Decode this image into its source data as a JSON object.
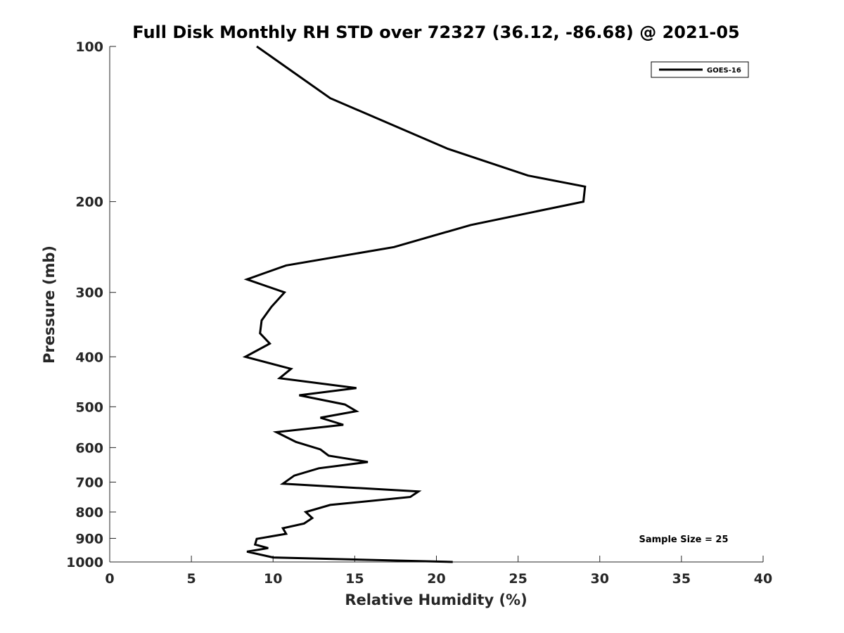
{
  "chart_data": {
    "type": "line",
    "title": "Full Disk Monthly RH STD over 72327 (36.12, -86.68) @ 2021-05",
    "xlabel": "Relative Humidity (%)",
    "ylabel": "Pressure (mb)",
    "xlim": [
      0,
      40
    ],
    "ylim": [
      100,
      1000
    ],
    "yscale": "log",
    "y_reversed": true,
    "xticks": [
      0,
      5,
      10,
      15,
      20,
      25,
      30,
      35,
      40
    ],
    "yticks": [
      100,
      200,
      300,
      400,
      500,
      600,
      700,
      800,
      900,
      1000
    ],
    "grid": false,
    "legend_position": "top-right",
    "annotation": "Sample Size = 25",
    "series": [
      {
        "name": "GOES-16",
        "color": "#000000",
        "points": [
          [
            9.0,
            100
          ],
          [
            13.5,
            126
          ],
          [
            20.7,
            158
          ],
          [
            25.6,
            178
          ],
          [
            29.1,
            187
          ],
          [
            29.0,
            200
          ],
          [
            22.1,
            222
          ],
          [
            17.4,
            245
          ],
          [
            10.8,
            266
          ],
          [
            8.4,
            283
          ],
          [
            10.7,
            300
          ],
          [
            9.9,
            320
          ],
          [
            9.3,
            340
          ],
          [
            9.2,
            360
          ],
          [
            9.8,
            377
          ],
          [
            8.3,
            400
          ],
          [
            11.1,
            422
          ],
          [
            10.4,
            440
          ],
          [
            15.1,
            460
          ],
          [
            11.6,
            475
          ],
          [
            14.4,
            495
          ],
          [
            15.1,
            510
          ],
          [
            12.9,
            525
          ],
          [
            14.3,
            542
          ],
          [
            10.2,
            560
          ],
          [
            11.4,
            585
          ],
          [
            12.9,
            605
          ],
          [
            13.4,
            622
          ],
          [
            15.8,
            640
          ],
          [
            12.8,
            658
          ],
          [
            11.3,
            680
          ],
          [
            10.6,
            705
          ],
          [
            18.9,
            730
          ],
          [
            18.4,
            748
          ],
          [
            13.5,
            775
          ],
          [
            12.0,
            800
          ],
          [
            12.4,
            822
          ],
          [
            11.9,
            842
          ],
          [
            10.6,
            860
          ],
          [
            10.8,
            882
          ],
          [
            9.0,
            902
          ],
          [
            8.9,
            925
          ],
          [
            9.7,
            940
          ],
          [
            8.4,
            955
          ],
          [
            10.0,
            980
          ],
          [
            21.0,
            1000
          ]
        ]
      }
    ]
  }
}
